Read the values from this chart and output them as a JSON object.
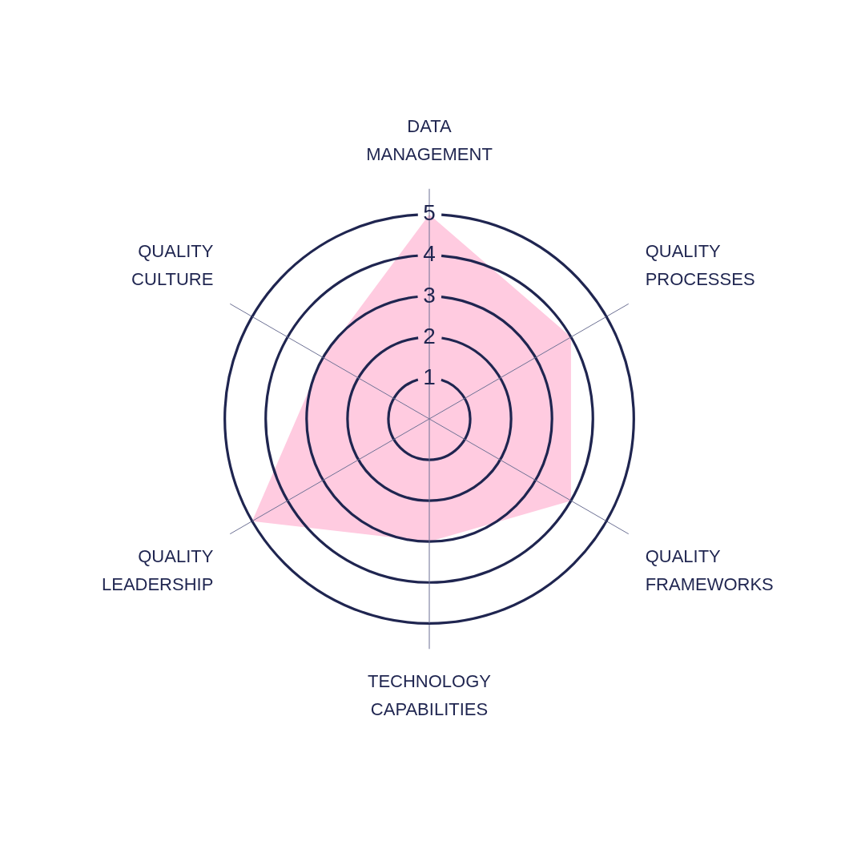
{
  "chart_data": {
    "type": "radar",
    "categories": [
      "DATA MANAGEMENT",
      "QUALITY PROCESSES",
      "QUALITY FRAMEWORKS",
      "TECHNOLOGY CAPABILITIES",
      "QUALITY LEADERSHIP",
      "QUALITY CULTURE"
    ],
    "series": [
      {
        "color": "#ffcbe0",
        "values": [
          5,
          4,
          4,
          3,
          5,
          3
        ]
      }
    ],
    "ylim": [
      0,
      5
    ],
    "yticks": [
      1,
      2,
      3,
      4,
      5
    ],
    "grid": true,
    "marker": "none"
  }
}
